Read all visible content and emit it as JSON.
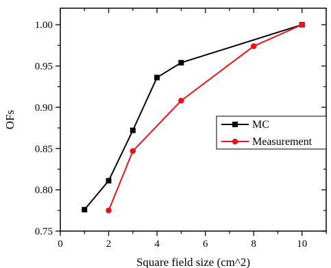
{
  "chart_data": {
    "type": "line",
    "xlabel": "Square field size (cm^2)",
    "ylabel": "OFs",
    "xlim": [
      0,
      11
    ],
    "ylim": [
      0.75,
      1.02
    ],
    "xticks": [
      0,
      2,
      4,
      6,
      8,
      10
    ],
    "yticks": [
      0.75,
      0.8,
      0.85,
      0.9,
      0.95,
      1.0
    ],
    "grid": false,
    "legend_position": "right-middle",
    "series": [
      {
        "name": "MC",
        "color": "#000000",
        "marker": "square",
        "x": [
          1,
          2,
          3,
          4,
          5,
          10
        ],
        "y": [
          0.776,
          0.811,
          0.872,
          0.936,
          0.954,
          1.0
        ]
      },
      {
        "name": "Measurement",
        "color": "#e8141c",
        "marker": "circle",
        "x": [
          2,
          3,
          5,
          8,
          10
        ],
        "y": [
          0.775,
          0.847,
          0.908,
          0.974,
          1.0
        ]
      }
    ]
  }
}
